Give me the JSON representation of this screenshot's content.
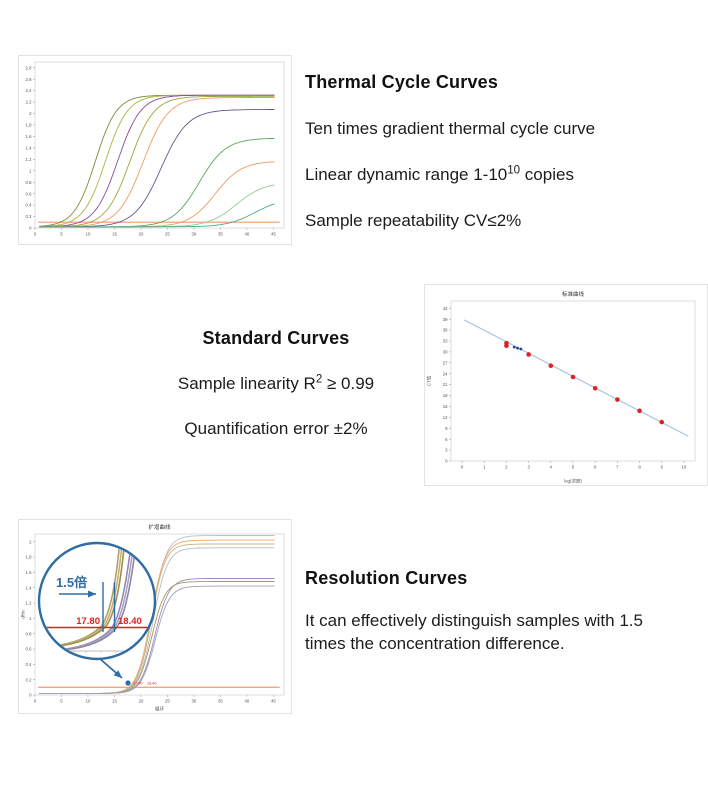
{
  "page": {
    "background": "#ffffff"
  },
  "sections": {
    "thermal": {
      "title": "Thermal Cycle Curves",
      "line1": "Ten times gradient thermal cycle curve",
      "line2": {
        "pre": "Linear dynamic range 1-10",
        "sup": "10",
        "post": " copies"
      },
      "line3": "Sample repeatability CV≤2%"
    },
    "standard": {
      "title": "Standard Curves",
      "line1": {
        "pre": "Sample linearity R",
        "sup": "2",
        "post": " ≥ 0.99"
      },
      "line2": "Quantification error ±2%"
    },
    "resolution": {
      "title": "Resolution Curves",
      "body": "It can effectively distinguish samples with 1.5 times the concentration difference."
    }
  },
  "chart_data": [
    {
      "id": "thermal",
      "type": "line",
      "title": "",
      "xlabel": "",
      "ylabel": "",
      "xlim": [
        0,
        47
      ],
      "ylim": [
        0,
        2.9
      ],
      "xticks": [
        0,
        5,
        10,
        15,
        20,
        25,
        30,
        35,
        40,
        45
      ],
      "yticks": [
        0,
        0.2,
        0.4,
        0.6,
        0.8,
        1,
        1.2,
        1.4,
        1.6,
        1.8,
        2,
        2.2,
        2.4,
        2.6,
        2.8
      ],
      "grid": false,
      "threshold": {
        "y": 0.1,
        "color": "#f5a57e"
      },
      "series": [
        {
          "color": "#7d8c3c",
          "midpoint": 11.4,
          "plateau": 2.3,
          "k": 0.5
        },
        {
          "color": "#a6b83e",
          "midpoint": 13.3,
          "plateau": 2.3,
          "k": 0.48
        },
        {
          "color": "#8b4a9e",
          "midpoint": 15.6,
          "plateau": 2.3,
          "k": 0.46
        },
        {
          "color": "#a0a43a",
          "midpoint": 17.9,
          "plateau": 2.28,
          "k": 0.44
        },
        {
          "color": "#f09a60",
          "midpoint": 20.4,
          "plateau": 2.26,
          "k": 0.42
        },
        {
          "color": "#5c5c90",
          "midpoint": 23.8,
          "plateau": 2.05,
          "k": 0.4
        },
        {
          "color": "#57a857",
          "midpoint": 31.0,
          "plateau": 1.55,
          "k": 0.4
        },
        {
          "color": "#f09a60",
          "midpoint": 34.0,
          "plateau": 1.15,
          "k": 0.4
        },
        {
          "color": "#8cd08c",
          "midpoint": 38.0,
          "plateau": 0.78,
          "k": 0.38
        },
        {
          "color": "#4cab8e",
          "midpoint": 41.5,
          "plateau": 0.5,
          "k": 0.38
        }
      ]
    },
    {
      "id": "standard",
      "type": "scatter",
      "title": "标准曲线",
      "xlabel": "log(浓度)",
      "ylabel": "CT值",
      "xlim": [
        -0.5,
        10.5
      ],
      "ylim": [
        0,
        44
      ],
      "xticks": [
        0,
        1,
        2,
        3,
        4,
        5,
        6,
        7,
        8,
        9,
        10
      ],
      "yticks": [
        0,
        3,
        6,
        9,
        12,
        15,
        18,
        21,
        24,
        27,
        30,
        33,
        36,
        39,
        42
      ],
      "grid": false,
      "fit_line": {
        "x": [
          0.1,
          10.2
        ],
        "y": [
          38.8,
          6.8
        ],
        "color": "#a9c4e4"
      },
      "points": {
        "color": "#e02121",
        "xy": [
          [
            2,
            32.4
          ],
          [
            2,
            31.7
          ],
          [
            3,
            29.3
          ],
          [
            4,
            26.2
          ],
          [
            5,
            23.1
          ],
          [
            6,
            20.0
          ],
          [
            7,
            16.9
          ],
          [
            8,
            13.8
          ],
          [
            9,
            10.7
          ]
        ]
      },
      "sample_points": {
        "color": "#1f3d99",
        "xy": [
          [
            2.35,
            31.3
          ],
          [
            2.5,
            31.05
          ],
          [
            2.65,
            30.8
          ]
        ]
      }
    },
    {
      "id": "resolution",
      "type": "line",
      "title": "扩增曲线",
      "xlabel": "循环",
      "ylabel": "dRn",
      "xlim": [
        0,
        47
      ],
      "ylim": [
        0,
        2.1
      ],
      "xticks": [
        0,
        5,
        10,
        15,
        20,
        25,
        30,
        35,
        40,
        45
      ],
      "yticks": [
        0,
        0.2,
        0.4,
        0.6,
        0.8,
        1,
        1.2,
        1.4,
        1.6,
        1.8,
        2
      ],
      "grid": false,
      "threshold": {
        "y": 0.1,
        "color": "#f5a57e"
      },
      "series": [
        {
          "color": "#a9c5e2",
          "midpoint": 22.1,
          "plateau": 2.06,
          "k": 0.75
        },
        {
          "color": "#f2a562",
          "midpoint": 21.9,
          "plateau": 2.0,
          "k": 0.75
        },
        {
          "color": "#cbb384",
          "midpoint": 22.0,
          "plateau": 1.95,
          "k": 0.78
        },
        {
          "color": "#b3bac8",
          "midpoint": 22.3,
          "plateau": 1.9,
          "k": 0.75
        },
        {
          "color": "#9a88b8",
          "midpoint": 22.6,
          "plateau": 1.5,
          "k": 0.75
        },
        {
          "color": "#a89a50",
          "midpoint": 22.0,
          "plateau": 1.46,
          "k": 0.78
        },
        {
          "color": "#9aa2b8",
          "midpoint": 22.7,
          "plateau": 1.4,
          "k": 0.75
        }
      ],
      "inset": {
        "label": "1.5倍",
        "ct_left": "17.80",
        "ct_right": "18.40",
        "circle_color": "#2e6da4",
        "line_color": "#e02121"
      }
    }
  ]
}
